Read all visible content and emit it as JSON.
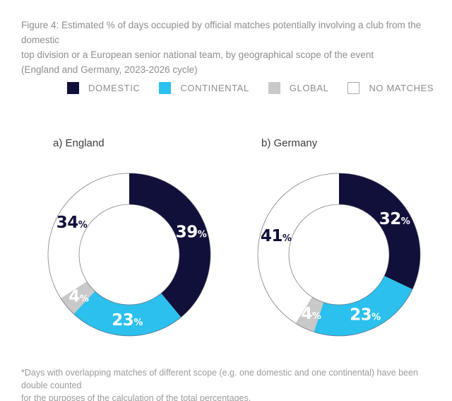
{
  "figure": {
    "title": "Figure 4: Estimated % of days occupied by official matches potentially involving a club from the domestic\ntop division or a European senior national team, by geographical scope of the event\n(England and Germany, 2023-2026 cycle)",
    "footnote": "*Days with overlapping matches of different scope (e.g. one domestic and one continental) have been double counted\nfor the purposes of the calculation of the total percentages."
  },
  "legend": {
    "position": "top",
    "items": [
      {
        "label": "DOMESTIC",
        "color": "#10103a"
      },
      {
        "label": "CONTINENTAL",
        "color": "#2bc0ed"
      },
      {
        "label": "GLOBAL",
        "color": "#c9c9c9"
      },
      {
        "label": "NO MATCHES",
        "color": "#ffffff"
      }
    ]
  },
  "chart_data": [
    {
      "type": "pie",
      "subtype": "donut",
      "title": "a) England",
      "categories": [
        "DOMESTIC",
        "CONTINENTAL",
        "GLOBAL",
        "NO MATCHES"
      ],
      "values": [
        39,
        23,
        4,
        34
      ],
      "labels": [
        "39%",
        "23%",
        "4%",
        "34%"
      ],
      "unit": "%",
      "start_angle_deg": 0,
      "direction": "clockwise"
    },
    {
      "type": "pie",
      "subtype": "donut",
      "title": "b) Germany",
      "categories": [
        "DOMESTIC",
        "CONTINENTAL",
        "GLOBAL",
        "NO MATCHES"
      ],
      "values": [
        32,
        23,
        4,
        41
      ],
      "labels": [
        "32%",
        "23%",
        "4%",
        "41%"
      ],
      "unit": "%",
      "start_angle_deg": 0,
      "direction": "clockwise"
    }
  ],
  "colors": {
    "label_on_dark": "#ffffff",
    "label_on_light": "#10103a",
    "ring_outline": "#55556b",
    "white_swatch_border": "#ababab"
  }
}
